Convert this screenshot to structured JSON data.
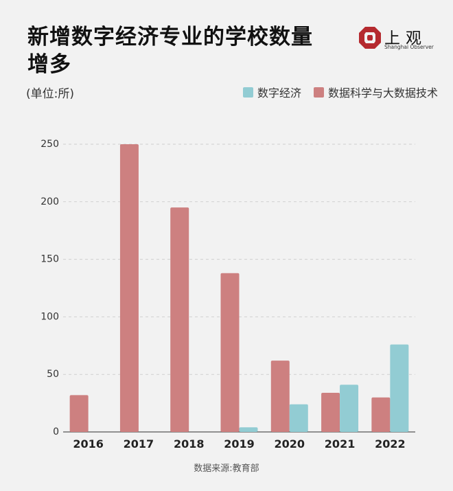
{
  "title": "新增数字经济专业的学校数量增多",
  "unit": "(单位:所)",
  "logo": {
    "name": "上观",
    "sub": "Shanghai Observer",
    "color": "#b52a2f"
  },
  "source": "数据来源:教育部",
  "colors": {
    "digital_economy": "#92ccd3",
    "data_science": "#cd8080",
    "grid": "#cfcfcf",
    "axis": "#555555"
  },
  "chart_data": {
    "type": "bar",
    "categories": [
      "2016",
      "2017",
      "2018",
      "2019",
      "2020",
      "2021",
      "2022"
    ],
    "series": [
      {
        "name": "数据科学与大数据技术",
        "values": [
          32,
          250,
          195,
          138,
          62,
          34,
          30
        ]
      },
      {
        "name": "数字经济",
        "values": [
          0,
          0,
          0,
          4,
          24,
          41,
          76
        ]
      }
    ],
    "yticks": [
      0,
      50,
      100,
      150,
      200,
      250
    ],
    "ylim": [
      0,
      250
    ],
    "grid": true,
    "legend": "top-right",
    "xlabel": "",
    "ylabel": ""
  }
}
